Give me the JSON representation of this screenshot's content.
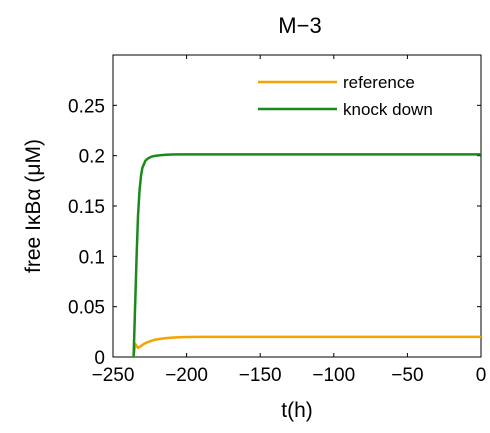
{
  "chart_data": {
    "type": "line",
    "title": "M−3",
    "xlabel": "t(h)",
    "ylabel": "free IκBα (μM)",
    "xlim": [
      -250,
      0
    ],
    "ylim": [
      0,
      0.3
    ],
    "xticks": [
      -250,
      -200,
      -150,
      -100,
      -50,
      0
    ],
    "xtick_labels": [
      "−250",
      "−200",
      "−150",
      "−100",
      "−50",
      "0"
    ],
    "yticks": [
      0,
      0.05,
      0.1,
      0.15,
      0.2,
      0.25
    ],
    "ytick_labels": [
      "0",
      "0.05",
      "0.1",
      "0.15",
      "0.2",
      "0.25"
    ],
    "grid": false,
    "legend_position": "top-right",
    "series": [
      {
        "name": "reference",
        "color": "#f4a300",
        "x": [
          -236,
          -235,
          -233,
          -231,
          -229,
          -226,
          -222,
          -218,
          -214,
          -210,
          -205,
          -200,
          -190,
          -150,
          -100,
          -50,
          0
        ],
        "y": [
          0.0,
          0.013,
          0.009,
          0.011,
          0.013,
          0.015,
          0.017,
          0.018,
          0.0188,
          0.0193,
          0.0197,
          0.0199,
          0.02,
          0.02,
          0.02,
          0.02,
          0.02
        ]
      },
      {
        "name": "knock down",
        "color": "#1a8a1a",
        "x": [
          -236,
          -235,
          -234,
          -233,
          -232,
          -231,
          -230,
          -228,
          -226,
          -224,
          -221,
          -218,
          -214,
          -210,
          -205,
          -200,
          -190,
          -150,
          -100,
          -50,
          0
        ],
        "y": [
          0.0,
          0.05,
          0.1,
          0.14,
          0.165,
          0.18,
          0.188,
          0.195,
          0.1975,
          0.199,
          0.2,
          0.2005,
          0.201,
          0.2012,
          0.2013,
          0.2013,
          0.2013,
          0.2013,
          0.2013,
          0.2013,
          0.2013
        ]
      }
    ]
  }
}
